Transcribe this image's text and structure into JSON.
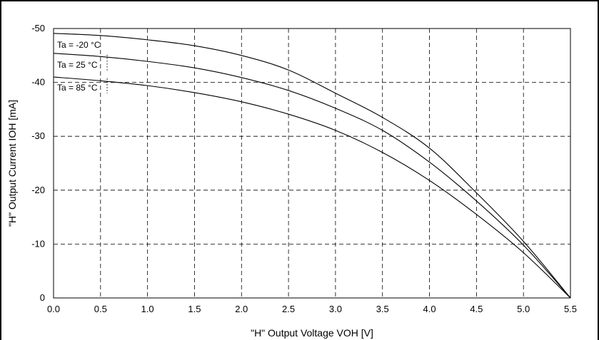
{
  "chart_data": {
    "type": "line",
    "title": "",
    "xlabel": "\"H\" Output Voltage VOH [V]",
    "ylabel": "\"H\" Output Current IOH [mA]",
    "xlim": [
      0,
      5.5
    ],
    "ylim": [
      0,
      -50
    ],
    "x_ticks": [
      "0.0",
      "0.5",
      "1.0",
      "1.5",
      "2.0",
      "2.5",
      "3.0",
      "3.5",
      "4.0",
      "4.5",
      "5.0",
      "5.5"
    ],
    "y_ticks": [
      "0",
      "-10",
      "-20",
      "-30",
      "-40",
      "-50"
    ],
    "grid": true,
    "series": [
      {
        "name": "Ta = -20 °C",
        "x": [
          0,
          0.5,
          1.0,
          1.5,
          2.0,
          2.5,
          3.0,
          3.5,
          4.0,
          4.5,
          5.0,
          5.5
        ],
        "y": [
          -49.1,
          -48.7,
          -47.9,
          -46.8,
          -45.0,
          -42.3,
          -38.0,
          -33.5,
          -27.8,
          -19.5,
          -10.5,
          0
        ]
      },
      {
        "name": "Ta = 25 °C",
        "x": [
          0,
          0.5,
          1.0,
          1.5,
          2.0,
          2.5,
          3.0,
          3.5,
          4.0,
          4.5,
          5.0,
          5.5
        ],
        "y": [
          -45.4,
          -44.8,
          -43.9,
          -42.7,
          -40.9,
          -38.5,
          -35.2,
          -31.1,
          -25.2,
          -18.0,
          -9.8,
          0
        ]
      },
      {
        "name": "Ta = 85 °C",
        "x": [
          0,
          0.5,
          1.0,
          1.5,
          2.0,
          2.5,
          3.0,
          3.5,
          4.0,
          4.5,
          5.0,
          5.5
        ],
        "y": [
          -41.0,
          -40.3,
          -39.4,
          -38.1,
          -36.4,
          -34.1,
          -31.1,
          -27.0,
          -21.8,
          -15.5,
          -8.4,
          0
        ]
      }
    ]
  }
}
